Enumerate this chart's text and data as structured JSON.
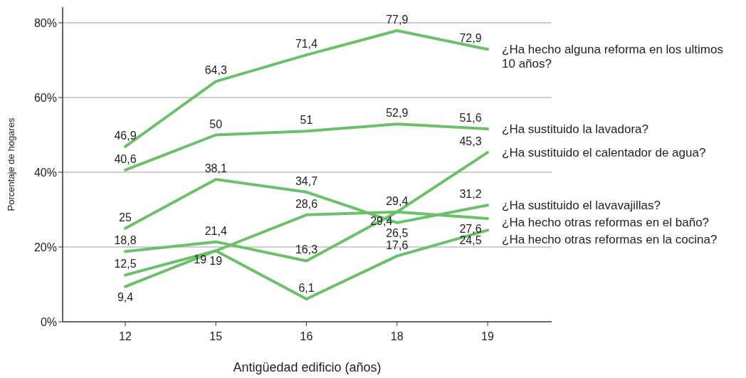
{
  "chart_data": {
    "type": "line",
    "xlabel": "Antigüedad edificio (años)",
    "ylabel": "Porcentaje de hogares",
    "categories": [
      "12",
      "15",
      "16",
      "18",
      "19"
    ],
    "ylim": [
      0,
      80
    ],
    "yticks": [
      {
        "value": 0,
        "label": "0%"
      },
      {
        "value": 20,
        "label": "20%"
      },
      {
        "value": 40,
        "label": "40%"
      },
      {
        "value": 60,
        "label": "60%"
      },
      {
        "value": 80,
        "label": "80%"
      }
    ],
    "grid": "y",
    "legend": "right",
    "marker": "none",
    "line_style": "solid",
    "series": [
      {
        "name": "¿Ha hecho alguna reforma en los ultimos 10 años?",
        "color": "#6cc06a",
        "values": [
          46.9,
          64.3,
          71.4,
          77.9,
          72.9
        ],
        "value_labels": [
          "46,9",
          "64,3",
          "71,4",
          "77,9",
          "72,9"
        ]
      },
      {
        "name": "¿Ha sustituido la lavadora?",
        "color": "#6cc06a",
        "values": [
          40.6,
          50,
          51,
          52.9,
          51.6
        ],
        "value_labels": [
          "40,6",
          "50",
          "51",
          "52,9",
          "51,6"
        ]
      },
      {
        "name": "¿Ha sustituido el calentador de agua?",
        "color": "#6cc06a",
        "values": [
          18.8,
          21.4,
          16.3,
          29.4,
          45.3
        ],
        "value_labels": [
          "18,8",
          "21,4",
          "16,3",
          "29,4",
          "45,3"
        ]
      },
      {
        "name": "¿Ha sustituido el lavavajillas?",
        "color": "#6cc06a",
        "values": [
          25,
          38.1,
          34.7,
          26.5,
          31.2
        ],
        "value_labels": [
          "25",
          "38,1",
          "34,7",
          "26,5",
          "31,2"
        ]
      },
      {
        "name": "¿Ha hecho otras reformas en el baño?",
        "color": "#6cc06a",
        "values": [
          12.5,
          19,
          28.6,
          29.4,
          27.6
        ],
        "value_labels": [
          "12,5",
          "19",
          "28,6",
          "29,4",
          "27,6"
        ]
      },
      {
        "name": "¿Ha hecho otras reformas en la cocina?",
        "color": "#6cc06a",
        "values": [
          9.4,
          19,
          6.1,
          17.6,
          24.5
        ],
        "value_labels": [
          "9,4",
          "19",
          "6,1",
          "17,6",
          "24,5"
        ]
      }
    ]
  }
}
